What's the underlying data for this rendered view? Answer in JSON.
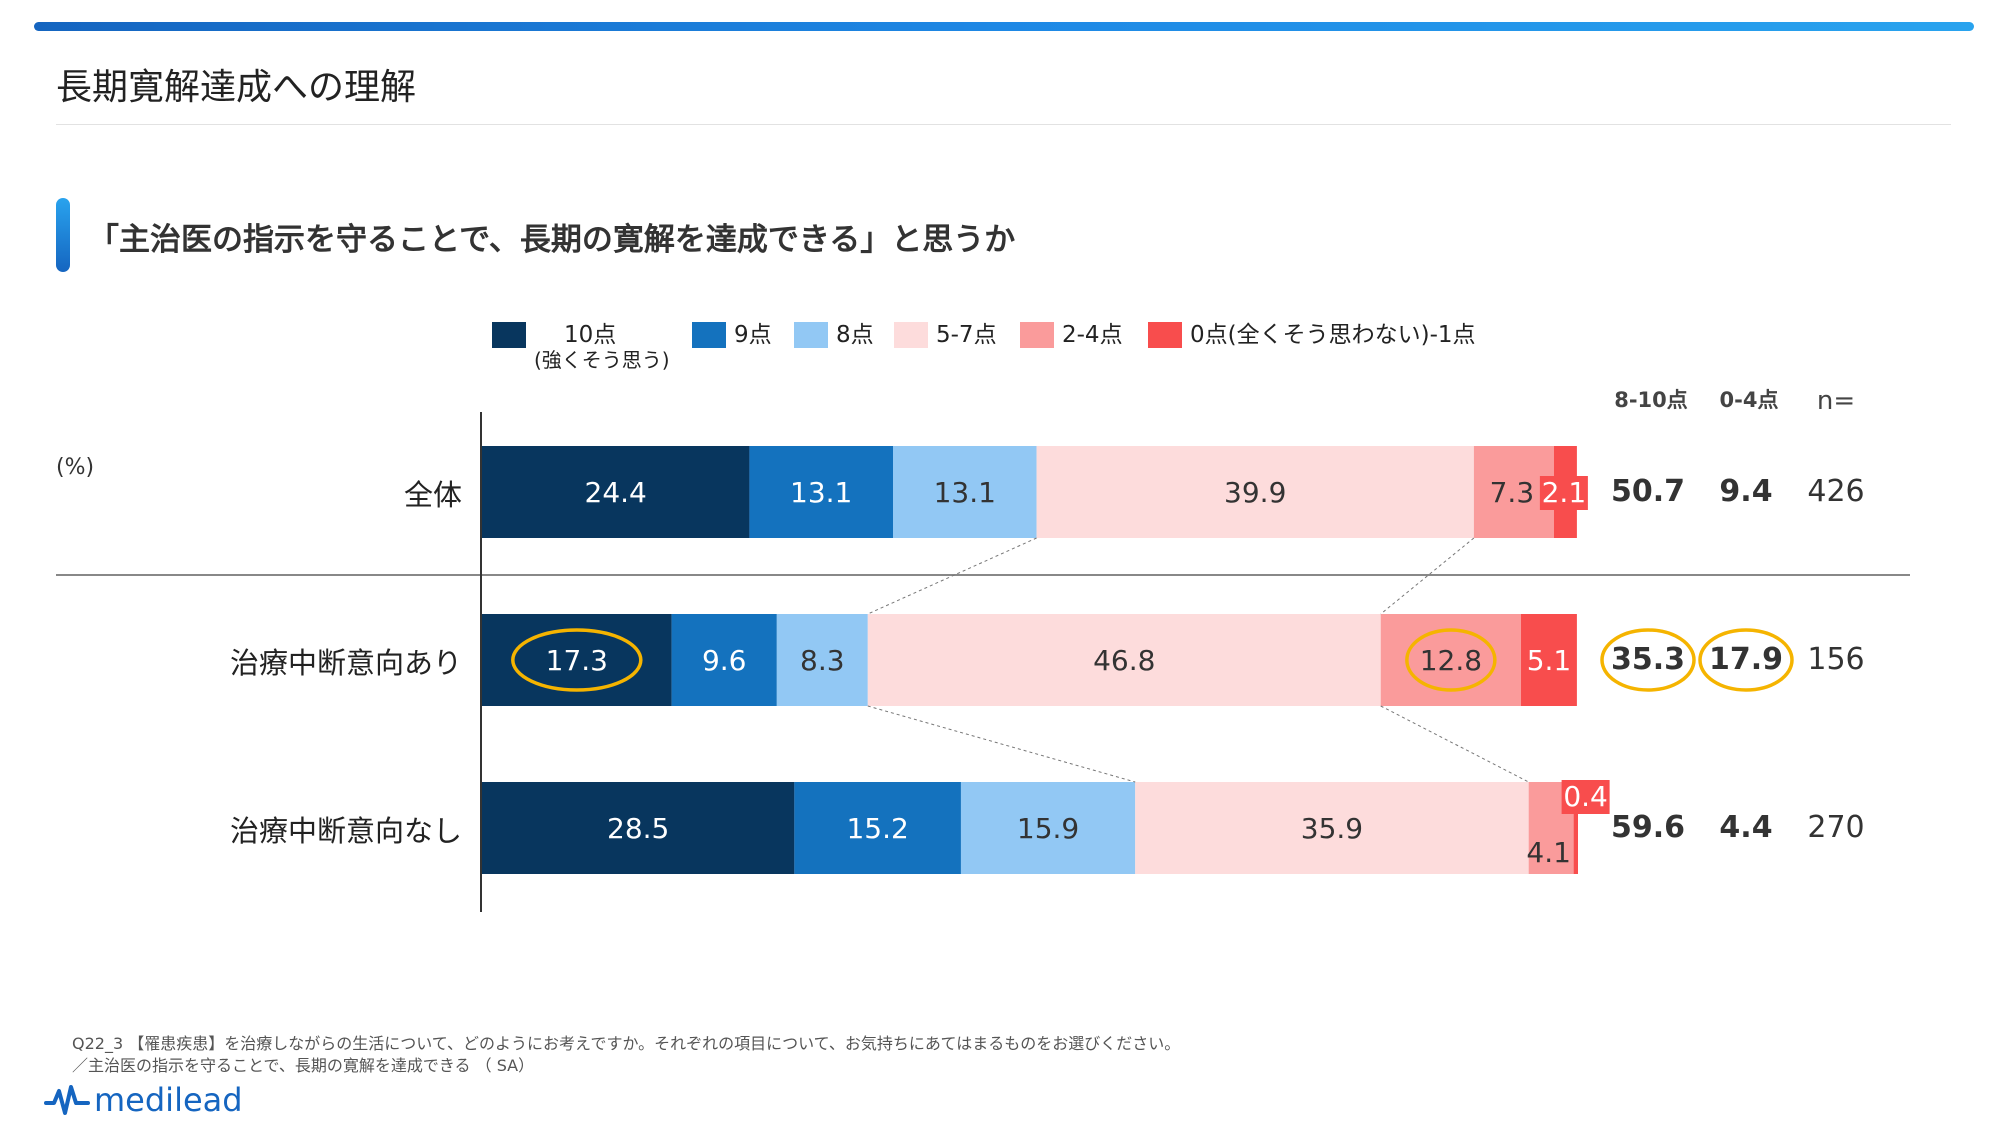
{
  "page_title": "長期寛解達成への理解",
  "question_title": "「主治医の指示を守ることで、長期の寛解を達成できる」と思うか",
  "unit_label": "(%)",
  "column_headers": {
    "high": "8-10点",
    "low": "0-4点",
    "n": "n="
  },
  "footnote": {
    "line1": "Q22_3 【罹患疾患】を治療しながらの生活について、どのようにお考えですか。それぞれの項目について、お気持ちにあてはまるものをお選びください。",
    "line2": "／主治医の指示を守ることで、長期の寛解を達成できる （ SA）"
  },
  "logo_text": "medilead",
  "colors": {
    "c10": "#08365e",
    "c9": "#1472be",
    "c8": "#92c8f4",
    "c57": "#fddcdc",
    "c24": "#fa9b9b",
    "c01": "#f84d4d",
    "highlight": "#f5b400",
    "accent": "#1565c0"
  },
  "chart_data": {
    "type": "bar",
    "orientation": "horizontal",
    "stacked": true,
    "xlim": [
      0,
      100
    ],
    "legend_position": "top",
    "categories": [
      "全体",
      "治療中断意向あり",
      "治療中断意向なし"
    ],
    "series": [
      {
        "name": "10点",
        "sub": "(強くそう思う)",
        "color_key": "c10",
        "values": [
          24.4,
          17.3,
          28.5
        ]
      },
      {
        "name": "9点",
        "color_key": "c9",
        "values": [
          13.1,
          9.6,
          15.2
        ]
      },
      {
        "name": "8点",
        "color_key": "c8",
        "values": [
          13.1,
          8.3,
          15.9
        ]
      },
      {
        "name": "5-7点",
        "color_key": "c57",
        "values": [
          39.9,
          46.8,
          35.9
        ]
      },
      {
        "name": "2-4点",
        "color_key": "c24",
        "values": [
          7.3,
          12.8,
          4.1
        ]
      },
      {
        "name": "0点(全くそう思わない)-1点",
        "color_key": "c01",
        "values": [
          2.1,
          5.1,
          0.4
        ]
      }
    ],
    "summary": {
      "high_8_10": [
        50.7,
        35.3,
        59.6
      ],
      "low_0_4": [
        9.4,
        17.9,
        4.4
      ],
      "n": [
        426,
        156,
        270
      ]
    },
    "highlights": [
      {
        "row": 1,
        "series": 0
      },
      {
        "row": 1,
        "series": 4
      },
      {
        "row": 1,
        "summary": "high_8_10"
      },
      {
        "row": 1,
        "summary": "low_0_4"
      }
    ]
  }
}
